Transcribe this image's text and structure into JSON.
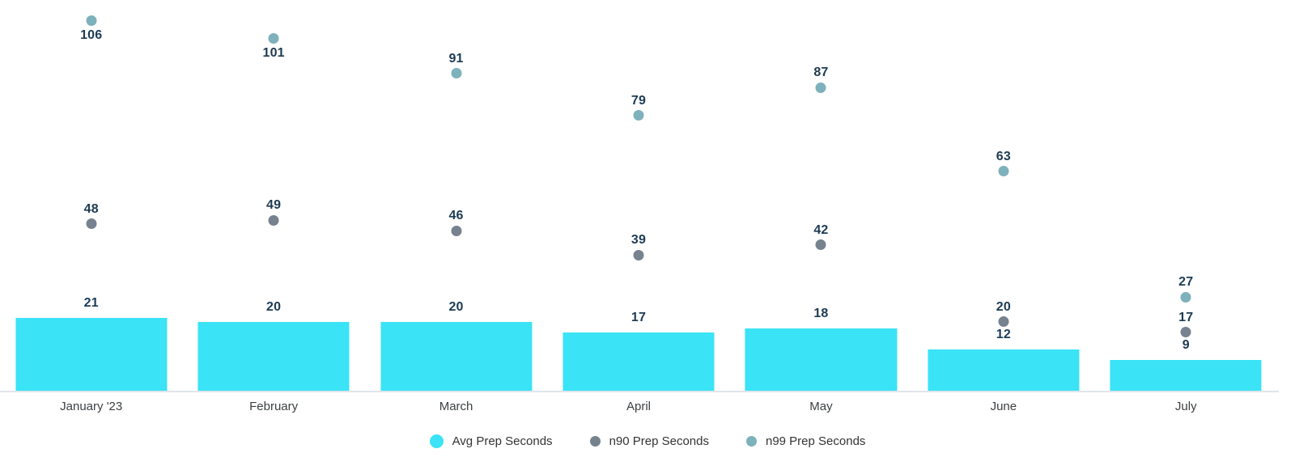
{
  "chart_data": {
    "type": "bar",
    "subtype": "bars-with-point-series-and-data-labels",
    "title": "",
    "xlabel": "",
    "ylabel": "",
    "categories": [
      "January '23",
      "February",
      "March",
      "April",
      "May",
      "June",
      "July"
    ],
    "series": [
      {
        "name": "Avg Prep Seconds",
        "render": "bar",
        "color": "#3ae3f5",
        "values": [
          21,
          20,
          20,
          17,
          18,
          12,
          9
        ]
      },
      {
        "name": "n90 Prep Seconds",
        "render": "point",
        "color": "#76828e",
        "values": [
          48,
          49,
          46,
          39,
          42,
          20,
          17
        ]
      },
      {
        "name": "n99 Prep Seconds",
        "render": "point",
        "color": "#7db1bb",
        "values": [
          106,
          101,
          91,
          79,
          87,
          63,
          27
        ]
      }
    ],
    "ylim": [
      0,
      112
    ],
    "grid": false,
    "y_axis_labels_visible": false,
    "data_labels_visible": true,
    "legend_position": "bottom"
  },
  "colors": {
    "background": "#ffffff",
    "axis_line": "#e0e4ec",
    "value_label": "#1d3b53",
    "x_label": "#3c4043",
    "legend_text": "#333333"
  }
}
